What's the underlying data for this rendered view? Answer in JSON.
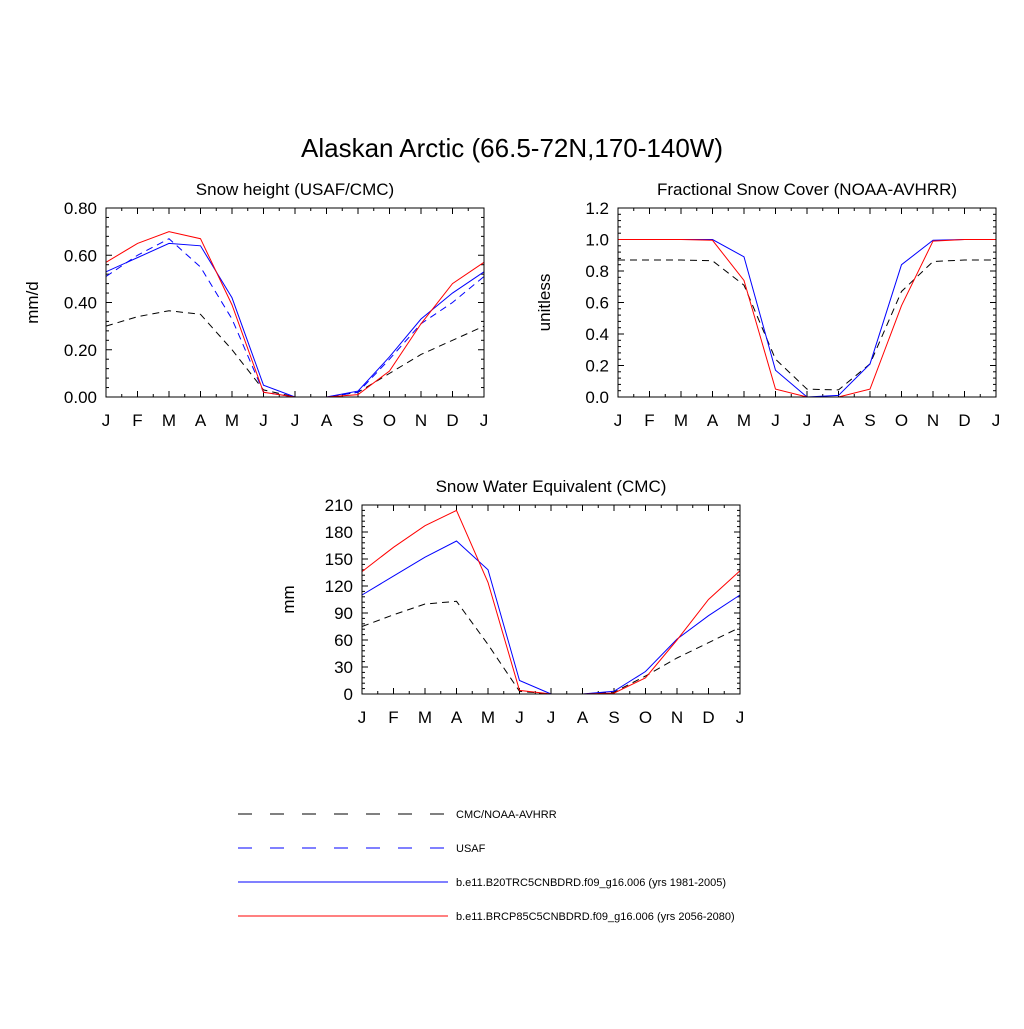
{
  "title": "Alaskan Arctic (66.5-72N,170-140W)",
  "months": [
    "J",
    "F",
    "M",
    "A",
    "M",
    "J",
    "J",
    "A",
    "S",
    "O",
    "N",
    "D",
    "J"
  ],
  "legend": [
    {
      "name": "CMC/NOAA-AVHRR",
      "color": "#000000",
      "dash": true
    },
    {
      "name": "USAF",
      "color": "#0000ff",
      "dash": true
    },
    {
      "name": "b.e11.B20TRC5CNBDRD.f09_g16.006 (yrs 1981-2005)",
      "color": "#0000ff",
      "dash": false
    },
    {
      "name": "b.e11.BRCP85C5CNBDRD.f09_g16.006 (yrs 2056-2080)",
      "color": "#ff0000",
      "dash": false
    }
  ],
  "chart_data": [
    {
      "type": "line",
      "title": "Snow height (USAF/CMC)",
      "xlabel": "",
      "ylabel": "mm/d",
      "ylim": [
        0,
        0.8
      ],
      "yticks": [
        "0.00",
        "0.20",
        "0.40",
        "0.60",
        "0.80"
      ],
      "categories": [
        "J",
        "F",
        "M",
        "A",
        "M",
        "J",
        "J",
        "A",
        "S",
        "O",
        "N",
        "D",
        "J"
      ],
      "series": [
        {
          "name": "CMC/NOAA-AVHRR",
          "values": [
            0.3,
            0.34,
            0.365,
            0.35,
            0.2,
            0.03,
            0.0,
            0.0,
            0.02,
            0.1,
            0.18,
            0.24,
            0.3
          ]
        },
        {
          "name": "USAF",
          "values": [
            0.51,
            0.6,
            0.67,
            0.55,
            0.33,
            0.02,
            0.0,
            0.0,
            0.02,
            0.16,
            0.31,
            0.4,
            0.51
          ]
        },
        {
          "name": "b.e11.B20TRC5CNBDRD.f09_g16.006 (yrs 1981-2005)",
          "values": [
            0.53,
            0.59,
            0.65,
            0.64,
            0.42,
            0.05,
            0.0,
            0.0,
            0.025,
            0.17,
            0.33,
            0.44,
            0.53
          ]
        },
        {
          "name": "b.e11.BRCP85C5CNBDRD.f09_g16.006 (yrs 2056-2080)",
          "values": [
            0.57,
            0.65,
            0.7,
            0.67,
            0.39,
            0.02,
            0.0,
            0.0,
            0.01,
            0.11,
            0.31,
            0.48,
            0.57
          ]
        }
      ]
    },
    {
      "type": "line",
      "title": "Fractional Snow Cover (NOAA-AVHRR)",
      "xlabel": "",
      "ylabel": "unitless",
      "ylim": [
        0,
        1.2
      ],
      "yticks": [
        "0.0",
        "0.2",
        "0.4",
        "0.6",
        "0.8",
        "1.0",
        "1.2"
      ],
      "categories": [
        "J",
        "F",
        "M",
        "A",
        "M",
        "J",
        "J",
        "A",
        "S",
        "O",
        "N",
        "D",
        "J"
      ],
      "series": [
        {
          "name": "CMC/NOAA-AVHRR",
          "values": [
            0.87,
            0.87,
            0.87,
            0.865,
            0.71,
            0.24,
            0.05,
            0.045,
            0.21,
            0.67,
            0.86,
            0.87,
            0.87
          ]
        },
        {
          "name": "b.e11.B20TRC5CNBDRD.f09_g16.006 (yrs 1981-2005)",
          "values": [
            1.0,
            1.0,
            1.0,
            1.0,
            0.89,
            0.17,
            0.0,
            0.01,
            0.21,
            0.84,
            0.995,
            1.0,
            1.0
          ]
        },
        {
          "name": "b.e11.BRCP85C5CNBDRD.f09_g16.006 (yrs 2056-2080)",
          "values": [
            1.0,
            1.0,
            1.0,
            0.995,
            0.74,
            0.05,
            0.0,
            0.0,
            0.05,
            0.58,
            0.99,
            1.0,
            1.0
          ]
        }
      ]
    },
    {
      "type": "line",
      "title": "Snow Water Equivalent (CMC)",
      "xlabel": "",
      "ylabel": "mm",
      "ylim": [
        0,
        210
      ],
      "yticks": [
        "0",
        "30",
        "60",
        "90",
        "120",
        "150",
        "180",
        "210"
      ],
      "categories": [
        "J",
        "F",
        "M",
        "A",
        "M",
        "J",
        "J",
        "A",
        "S",
        "O",
        "N",
        "D",
        "J"
      ],
      "series": [
        {
          "name": "CMC/NOAA-AVHRR",
          "values": [
            75,
            88,
            100,
            103,
            55,
            3,
            0,
            0,
            2,
            20,
            40,
            57,
            74
          ]
        },
        {
          "name": "b.e11.B20TRC5CNBDRD.f09_g16.006 (yrs 1981-2005)",
          "values": [
            110,
            131,
            152,
            170,
            138,
            15,
            0,
            0,
            3,
            25,
            61,
            87,
            110
          ]
        },
        {
          "name": "b.e11.BRCP85C5CNBDRD.f09_g16.006 (yrs 2056-2080)",
          "values": [
            136,
            163,
            187,
            204,
            124,
            4,
            0,
            0,
            1,
            18,
            60,
            105,
            137
          ]
        }
      ]
    }
  ]
}
